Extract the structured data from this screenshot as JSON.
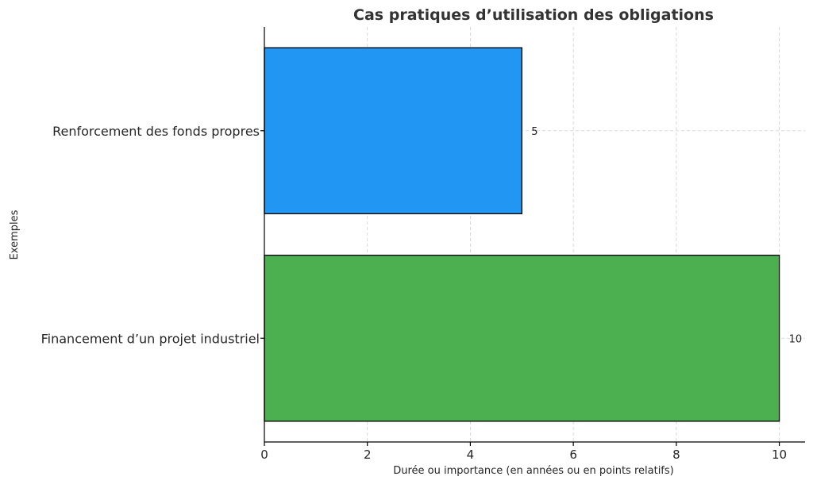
{
  "chart_data": {
    "type": "bar",
    "orientation": "horizontal",
    "title": "Cas pratiques d’utilisation des obligations",
    "xlabel": "Durée ou importance (en années ou en points relatifs)",
    "ylabel": "Exemples",
    "categories": [
      "Renforcement des fonds propres",
      "Financement d’un projet industriel"
    ],
    "values": [
      5,
      10
    ],
    "colors": [
      "#2196F3",
      "#4CAF50"
    ],
    "xlim": [
      0,
      10.5
    ],
    "xticks": [
      0,
      2,
      4,
      6,
      8,
      10
    ],
    "grid": true,
    "data_labels": [
      "5",
      "10"
    ]
  }
}
